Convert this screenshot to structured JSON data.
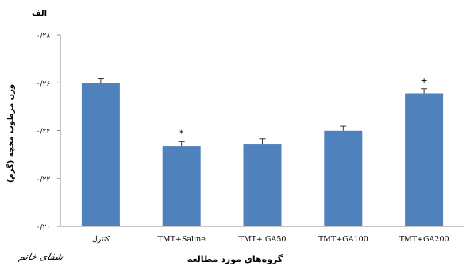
{
  "panel_label": "الف",
  "logo_text": "شفای خاتم",
  "chart_data": {
    "type": "bar",
    "categories": [
      "کنترل",
      "TMT+Saline",
      "TMT+ GA50",
      "TMT+GA100",
      "TMT+GA200"
    ],
    "values": [
      0.26,
      0.2335,
      0.2345,
      0.2399,
      0.2556
    ],
    "errors": [
      0.0019,
      0.0019,
      0.0021,
      0.0019,
      0.0019
    ],
    "annotations": [
      "",
      "*",
      "",
      "",
      "+"
    ],
    "xlabel": "گروه‌های مورد مطالعه",
    "ylabel": "وزن مرطوب مخچه (گرم)",
    "ylim": [
      0.2,
      0.28
    ],
    "yticks": [
      0.2,
      0.22,
      0.24,
      0.26,
      0.28
    ],
    "ytick_labels": [
      "۰/۲۰۰",
      "۰/۲۲۰",
      "۰/۲۴۰",
      "۰/۲۶۰",
      "۰/۲۸۰"
    ],
    "bar_color": "#4f81bd",
    "grid": false
  }
}
